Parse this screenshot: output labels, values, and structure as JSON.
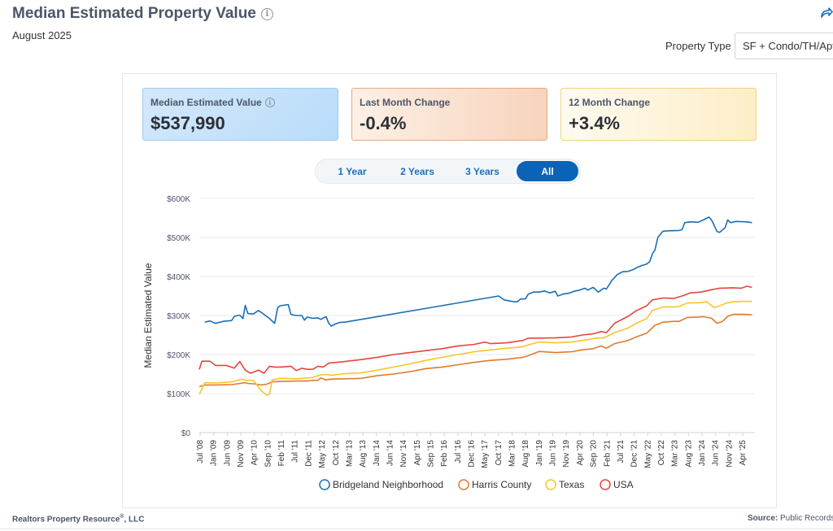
{
  "header": {
    "title": "Median Estimated Property Value",
    "info_icon": "i",
    "date": "August 2025",
    "share_icon": "share-icon"
  },
  "filter": {
    "label": "Property Type",
    "value": "SF + Condo/TH/Apt"
  },
  "cards": {
    "median": {
      "label": "Median Estimated Value",
      "value": "$537,990"
    },
    "last_month": {
      "label": "Last Month Change",
      "value": "-0.4%"
    },
    "twelve_month": {
      "label": "12 Month Change",
      "value": "+3.4%"
    }
  },
  "ranges": {
    "one_year": "1 Year",
    "two_years": "2 Years",
    "three_years": "3 Years",
    "all": "All",
    "active": "All"
  },
  "footer": {
    "left": "Realtors Property Resource",
    "left_mark": "®",
    "left_suffix": ", LLC",
    "right_label": "Source:",
    "right_value": "Public Records"
  },
  "chart_data": {
    "type": "line",
    "title": "",
    "ylabel": "Median Estimated Value",
    "xlabel": "",
    "ylim": [
      0,
      600000
    ],
    "yticks": [
      0,
      100000,
      200000,
      300000,
      400000,
      500000,
      600000
    ],
    "ytick_labels": [
      "$0",
      "$100K",
      "$200K",
      "$300K",
      "$400K",
      "$500K",
      "$600K"
    ],
    "xlim": [
      2008.5,
      2025.67
    ],
    "xtick_labels": [
      "Jul '08",
      "Jan '09",
      "Jun '09",
      "Nov '09",
      "Apr '10",
      "Sep '10",
      "Feb '11",
      "Jul '11",
      "Dec '11",
      "May '12",
      "Oct '12",
      "Mar '13",
      "Aug '13",
      "Jan '14",
      "Jun '14",
      "Nov '14",
      "Apr '15",
      "Sep '15",
      "Feb '16",
      "Jul '16",
      "Dec '16",
      "May '17",
      "Oct '17",
      "Mar '18",
      "Aug '18",
      "Jan '19",
      "Jun '19",
      "Nov '19",
      "Apr '20",
      "Sep '20",
      "Feb '21",
      "Jul '21",
      "Dec '21",
      "May '22",
      "Oct '22",
      "Mar '23",
      "Aug '23",
      "Jan '24",
      "Jun '24",
      "Nov '24",
      "Apr '25"
    ],
    "grid": true,
    "legend_position": "bottom",
    "series": [
      {
        "name": "Bridgeland Neighborhood",
        "color": "#1a6fb5",
        "points": [
          [
            2008.67,
            283000
          ],
          [
            2008.83,
            286000
          ],
          [
            2009.0,
            280000
          ],
          [
            2009.25,
            285000
          ],
          [
            2009.5,
            287000
          ],
          [
            2009.58,
            298000
          ],
          [
            2009.75,
            301000
          ],
          [
            2009.85,
            292000
          ],
          [
            2009.92,
            326000
          ],
          [
            2010.0,
            305000
          ],
          [
            2010.17,
            304000
          ],
          [
            2010.33,
            313000
          ],
          [
            2010.5,
            303000
          ],
          [
            2010.67,
            292000
          ],
          [
            2010.83,
            280000
          ],
          [
            2010.92,
            320000
          ],
          [
            2011.0,
            325000
          ],
          [
            2011.17,
            327000
          ],
          [
            2011.25,
            328000
          ],
          [
            2011.33,
            303000
          ],
          [
            2011.5,
            300000
          ],
          [
            2011.67,
            300000
          ],
          [
            2011.75,
            288000
          ],
          [
            2011.83,
            296000
          ],
          [
            2012.0,
            293000
          ],
          [
            2012.17,
            294000
          ],
          [
            2012.25,
            290000
          ],
          [
            2012.42,
            297000
          ],
          [
            2012.5,
            280000
          ],
          [
            2012.58,
            273000
          ],
          [
            2012.67,
            277000
          ],
          [
            2012.83,
            282000
          ],
          [
            2013.0,
            283000
          ],
          [
            2017.75,
            350000
          ],
          [
            2017.92,
            340000
          ],
          [
            2018.17,
            336000
          ],
          [
            2018.33,
            335000
          ],
          [
            2018.42,
            342000
          ],
          [
            2018.58,
            343000
          ],
          [
            2018.67,
            355000
          ],
          [
            2018.83,
            360000
          ],
          [
            2019.0,
            360000
          ],
          [
            2019.17,
            363000
          ],
          [
            2019.33,
            358000
          ],
          [
            2019.5,
            362000
          ],
          [
            2019.58,
            350000
          ],
          [
            2019.75,
            355000
          ],
          [
            2019.92,
            357000
          ],
          [
            2020.08,
            362000
          ],
          [
            2020.25,
            365000
          ],
          [
            2020.42,
            370000
          ],
          [
            2020.5,
            365000
          ],
          [
            2020.67,
            372000
          ],
          [
            2020.83,
            360000
          ],
          [
            2021.0,
            370000
          ],
          [
            2021.08,
            368000
          ],
          [
            2021.25,
            390000
          ],
          [
            2021.42,
            405000
          ],
          [
            2021.58,
            412000
          ],
          [
            2021.75,
            413000
          ],
          [
            2021.92,
            418000
          ],
          [
            2022.0,
            422000
          ],
          [
            2022.17,
            428000
          ],
          [
            2022.33,
            432000
          ],
          [
            2022.42,
            438000
          ],
          [
            2022.5,
            458000
          ],
          [
            2022.58,
            468000
          ],
          [
            2022.67,
            500000
          ],
          [
            2022.83,
            516000
          ],
          [
            2023.0,
            517000
          ],
          [
            2023.33,
            518000
          ],
          [
            2023.42,
            520000
          ],
          [
            2023.5,
            538000
          ],
          [
            2023.67,
            540000
          ],
          [
            2023.92,
            539000
          ],
          [
            2024.08,
            545000
          ],
          [
            2024.25,
            552000
          ],
          [
            2024.33,
            545000
          ],
          [
            2024.5,
            515000
          ],
          [
            2024.58,
            513000
          ],
          [
            2024.75,
            525000
          ],
          [
            2024.83,
            545000
          ],
          [
            2024.92,
            538000
          ],
          [
            2025.08,
            541000
          ],
          [
            2025.42,
            540000
          ],
          [
            2025.58,
            537990
          ]
        ]
      },
      {
        "name": "Harris County",
        "color": "#e07b2e",
        "points": [
          [
            2008.5,
            118000
          ],
          [
            2008.67,
            122000
          ],
          [
            2009.0,
            122000
          ],
          [
            2009.5,
            123000
          ],
          [
            2009.92,
            128000
          ],
          [
            2010.0,
            126000
          ],
          [
            2010.17,
            125000
          ],
          [
            2010.42,
            122000
          ],
          [
            2010.58,
            124000
          ],
          [
            2010.75,
            130000
          ],
          [
            2011.0,
            131000
          ],
          [
            2011.5,
            132000
          ],
          [
            2011.83,
            132000
          ],
          [
            2012.0,
            134000
          ],
          [
            2012.17,
            134000
          ],
          [
            2012.25,
            140000
          ],
          [
            2012.42,
            135000
          ],
          [
            2012.58,
            137000
          ],
          [
            2013.0,
            138000
          ],
          [
            2013.5,
            139000
          ],
          [
            2014.0,
            146000
          ],
          [
            2014.5,
            150000
          ],
          [
            2015.0,
            156000
          ],
          [
            2015.5,
            164000
          ],
          [
            2016.0,
            168000
          ],
          [
            2016.5,
            174000
          ],
          [
            2017.0,
            180000
          ],
          [
            2017.5,
            185000
          ],
          [
            2018.0,
            188000
          ],
          [
            2018.5,
            193000
          ],
          [
            2018.67,
            197000
          ],
          [
            2019.0,
            208000
          ],
          [
            2019.5,
            205000
          ],
          [
            2020.0,
            207000
          ],
          [
            2020.33,
            212000
          ],
          [
            2020.67,
            215000
          ],
          [
            2020.92,
            222000
          ],
          [
            2021.08,
            216000
          ],
          [
            2021.33,
            228000
          ],
          [
            2021.75,
            236000
          ],
          [
            2022.0,
            245000
          ],
          [
            2022.33,
            255000
          ],
          [
            2022.58,
            275000
          ],
          [
            2022.83,
            283000
          ],
          [
            2023.17,
            285000
          ],
          [
            2023.33,
            285000
          ],
          [
            2023.58,
            295000
          ],
          [
            2023.92,
            296000
          ],
          [
            2024.08,
            297000
          ],
          [
            2024.33,
            293000
          ],
          [
            2024.5,
            280000
          ],
          [
            2024.67,
            285000
          ],
          [
            2024.83,
            298000
          ],
          [
            2025.0,
            303000
          ],
          [
            2025.33,
            303000
          ],
          [
            2025.58,
            302000
          ]
        ]
      },
      {
        "name": "Texas",
        "color": "#f7c52a",
        "points": [
          [
            2008.5,
            98000
          ],
          [
            2008.67,
            128000
          ],
          [
            2009.0,
            127000
          ],
          [
            2009.5,
            130000
          ],
          [
            2009.83,
            137000
          ],
          [
            2009.92,
            134000
          ],
          [
            2010.17,
            134000
          ],
          [
            2010.42,
            107000
          ],
          [
            2010.58,
            96000
          ],
          [
            2010.67,
            98000
          ],
          [
            2010.75,
            135000
          ],
          [
            2011.0,
            139000
          ],
          [
            2011.5,
            138000
          ],
          [
            2011.83,
            140000
          ],
          [
            2012.0,
            141000
          ],
          [
            2012.25,
            148000
          ],
          [
            2012.42,
            149000
          ],
          [
            2012.58,
            147000
          ],
          [
            2013.0,
            151000
          ],
          [
            2013.5,
            153000
          ],
          [
            2014.0,
            160000
          ],
          [
            2014.5,
            168000
          ],
          [
            2015.0,
            176000
          ],
          [
            2015.5,
            185000
          ],
          [
            2016.0,
            193000
          ],
          [
            2016.5,
            200000
          ],
          [
            2017.0,
            207000
          ],
          [
            2017.5,
            212000
          ],
          [
            2018.0,
            216000
          ],
          [
            2018.5,
            220000
          ],
          [
            2018.67,
            225000
          ],
          [
            2019.0,
            232000
          ],
          [
            2019.5,
            230000
          ],
          [
            2020.0,
            232000
          ],
          [
            2020.5,
            238000
          ],
          [
            2020.75,
            242000
          ],
          [
            2021.0,
            243000
          ],
          [
            2021.33,
            256000
          ],
          [
            2021.75,
            268000
          ],
          [
            2022.0,
            280000
          ],
          [
            2022.33,
            292000
          ],
          [
            2022.5,
            313000
          ],
          [
            2022.83,
            322000
          ],
          [
            2023.17,
            322000
          ],
          [
            2023.33,
            323000
          ],
          [
            2023.58,
            332000
          ],
          [
            2024.0,
            333000
          ],
          [
            2024.17,
            336000
          ],
          [
            2024.42,
            320000
          ],
          [
            2024.58,
            325000
          ],
          [
            2024.83,
            333000
          ],
          [
            2025.0,
            335000
          ],
          [
            2025.33,
            336000
          ],
          [
            2025.58,
            336000
          ]
        ]
      },
      {
        "name": "USA",
        "color": "#e5453d",
        "points": [
          [
            2008.5,
            162000
          ],
          [
            2008.58,
            183000
          ],
          [
            2008.83,
            183000
          ],
          [
            2009.0,
            172000
          ],
          [
            2009.33,
            172000
          ],
          [
            2009.58,
            165000
          ],
          [
            2009.75,
            182000
          ],
          [
            2009.92,
            160000
          ],
          [
            2010.08,
            152000
          ],
          [
            2010.33,
            160000
          ],
          [
            2010.5,
            152000
          ],
          [
            2010.67,
            170000
          ],
          [
            2010.83,
            168000
          ],
          [
            2011.0,
            168000
          ],
          [
            2011.33,
            170000
          ],
          [
            2011.5,
            159000
          ],
          [
            2011.67,
            165000
          ],
          [
            2011.83,
            162000
          ],
          [
            2012.0,
            162000
          ],
          [
            2012.17,
            170000
          ],
          [
            2012.33,
            168000
          ],
          [
            2012.5,
            178000
          ],
          [
            2013.0,
            182000
          ],
          [
            2013.5,
            187000
          ],
          [
            2014.0,
            193000
          ],
          [
            2014.5,
            200000
          ],
          [
            2015.0,
            205000
          ],
          [
            2015.5,
            210000
          ],
          [
            2016.0,
            215000
          ],
          [
            2016.5,
            222000
          ],
          [
            2017.0,
            226000
          ],
          [
            2017.33,
            232000
          ],
          [
            2017.5,
            228000
          ],
          [
            2018.0,
            230000
          ],
          [
            2018.5,
            236000
          ],
          [
            2018.67,
            242000
          ],
          [
            2019.0,
            242000
          ],
          [
            2019.5,
            243000
          ],
          [
            2020.0,
            245000
          ],
          [
            2020.33,
            250000
          ],
          [
            2020.67,
            253000
          ],
          [
            2020.92,
            259000
          ],
          [
            2021.08,
            256000
          ],
          [
            2021.33,
            280000
          ],
          [
            2021.75,
            298000
          ],
          [
            2022.0,
            312000
          ],
          [
            2022.33,
            325000
          ],
          [
            2022.5,
            340000
          ],
          [
            2022.83,
            345000
          ],
          [
            2023.17,
            344000
          ],
          [
            2023.42,
            350000
          ],
          [
            2023.67,
            358000
          ],
          [
            2024.0,
            360000
          ],
          [
            2024.33,
            366000
          ],
          [
            2024.58,
            370000
          ],
          [
            2025.0,
            371000
          ],
          [
            2025.25,
            370000
          ],
          [
            2025.42,
            375000
          ],
          [
            2025.58,
            372000
          ]
        ]
      }
    ]
  }
}
